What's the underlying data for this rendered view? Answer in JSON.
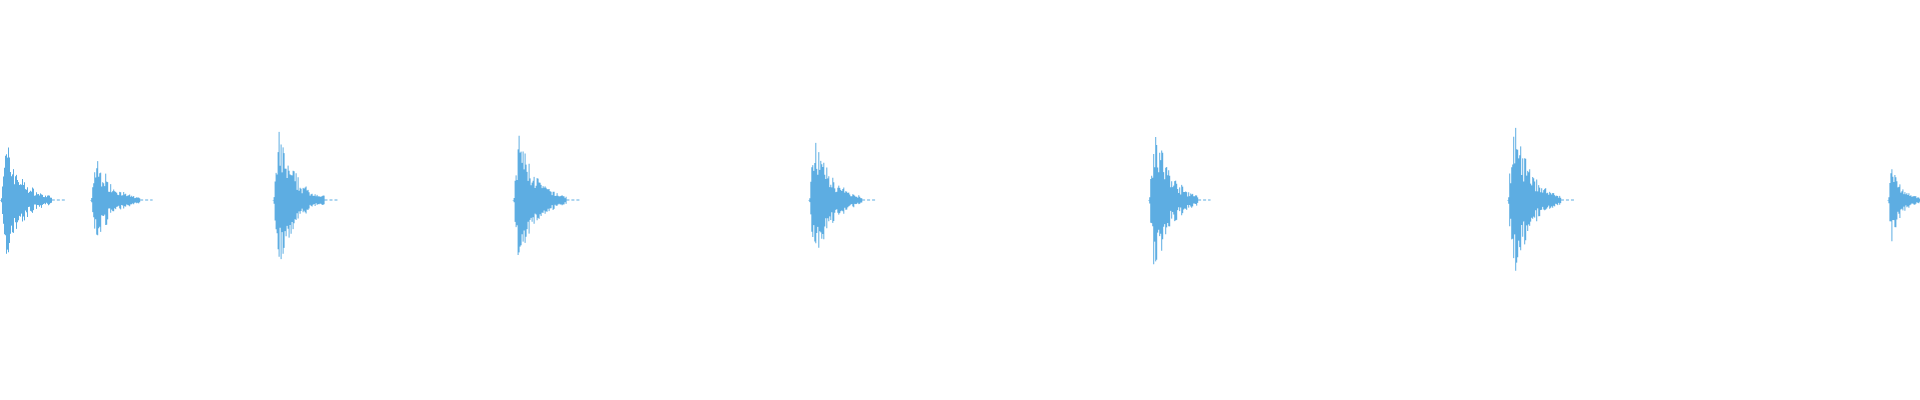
{
  "chart_data": {
    "type": "area",
    "ylim": [
      -1,
      1
    ],
    "xlim": [
      0,
      1
    ],
    "grid": false,
    "color": "#5DADE2",
    "bursts": [
      {
        "onset": 0.0,
        "peak_amplitude": 0.36,
        "decay_length": 0.027
      },
      {
        "onset": 0.047,
        "peak_amplitude": 0.27,
        "decay_length": 0.026
      },
      {
        "onset": 0.142,
        "peak_amplitude": 0.42,
        "decay_length": 0.027
      },
      {
        "onset": 0.267,
        "peak_amplitude": 0.41,
        "decay_length": 0.028
      },
      {
        "onset": 0.421,
        "peak_amplitude": 0.4,
        "decay_length": 0.028
      },
      {
        "onset": 0.598,
        "peak_amplitude": 0.48,
        "decay_length": 0.026
      },
      {
        "onset": 0.785,
        "peak_amplitude": 0.48,
        "decay_length": 0.028
      },
      {
        "onset": 0.983,
        "peak_amplitude": 0.24,
        "decay_length": 0.017
      }
    ]
  }
}
